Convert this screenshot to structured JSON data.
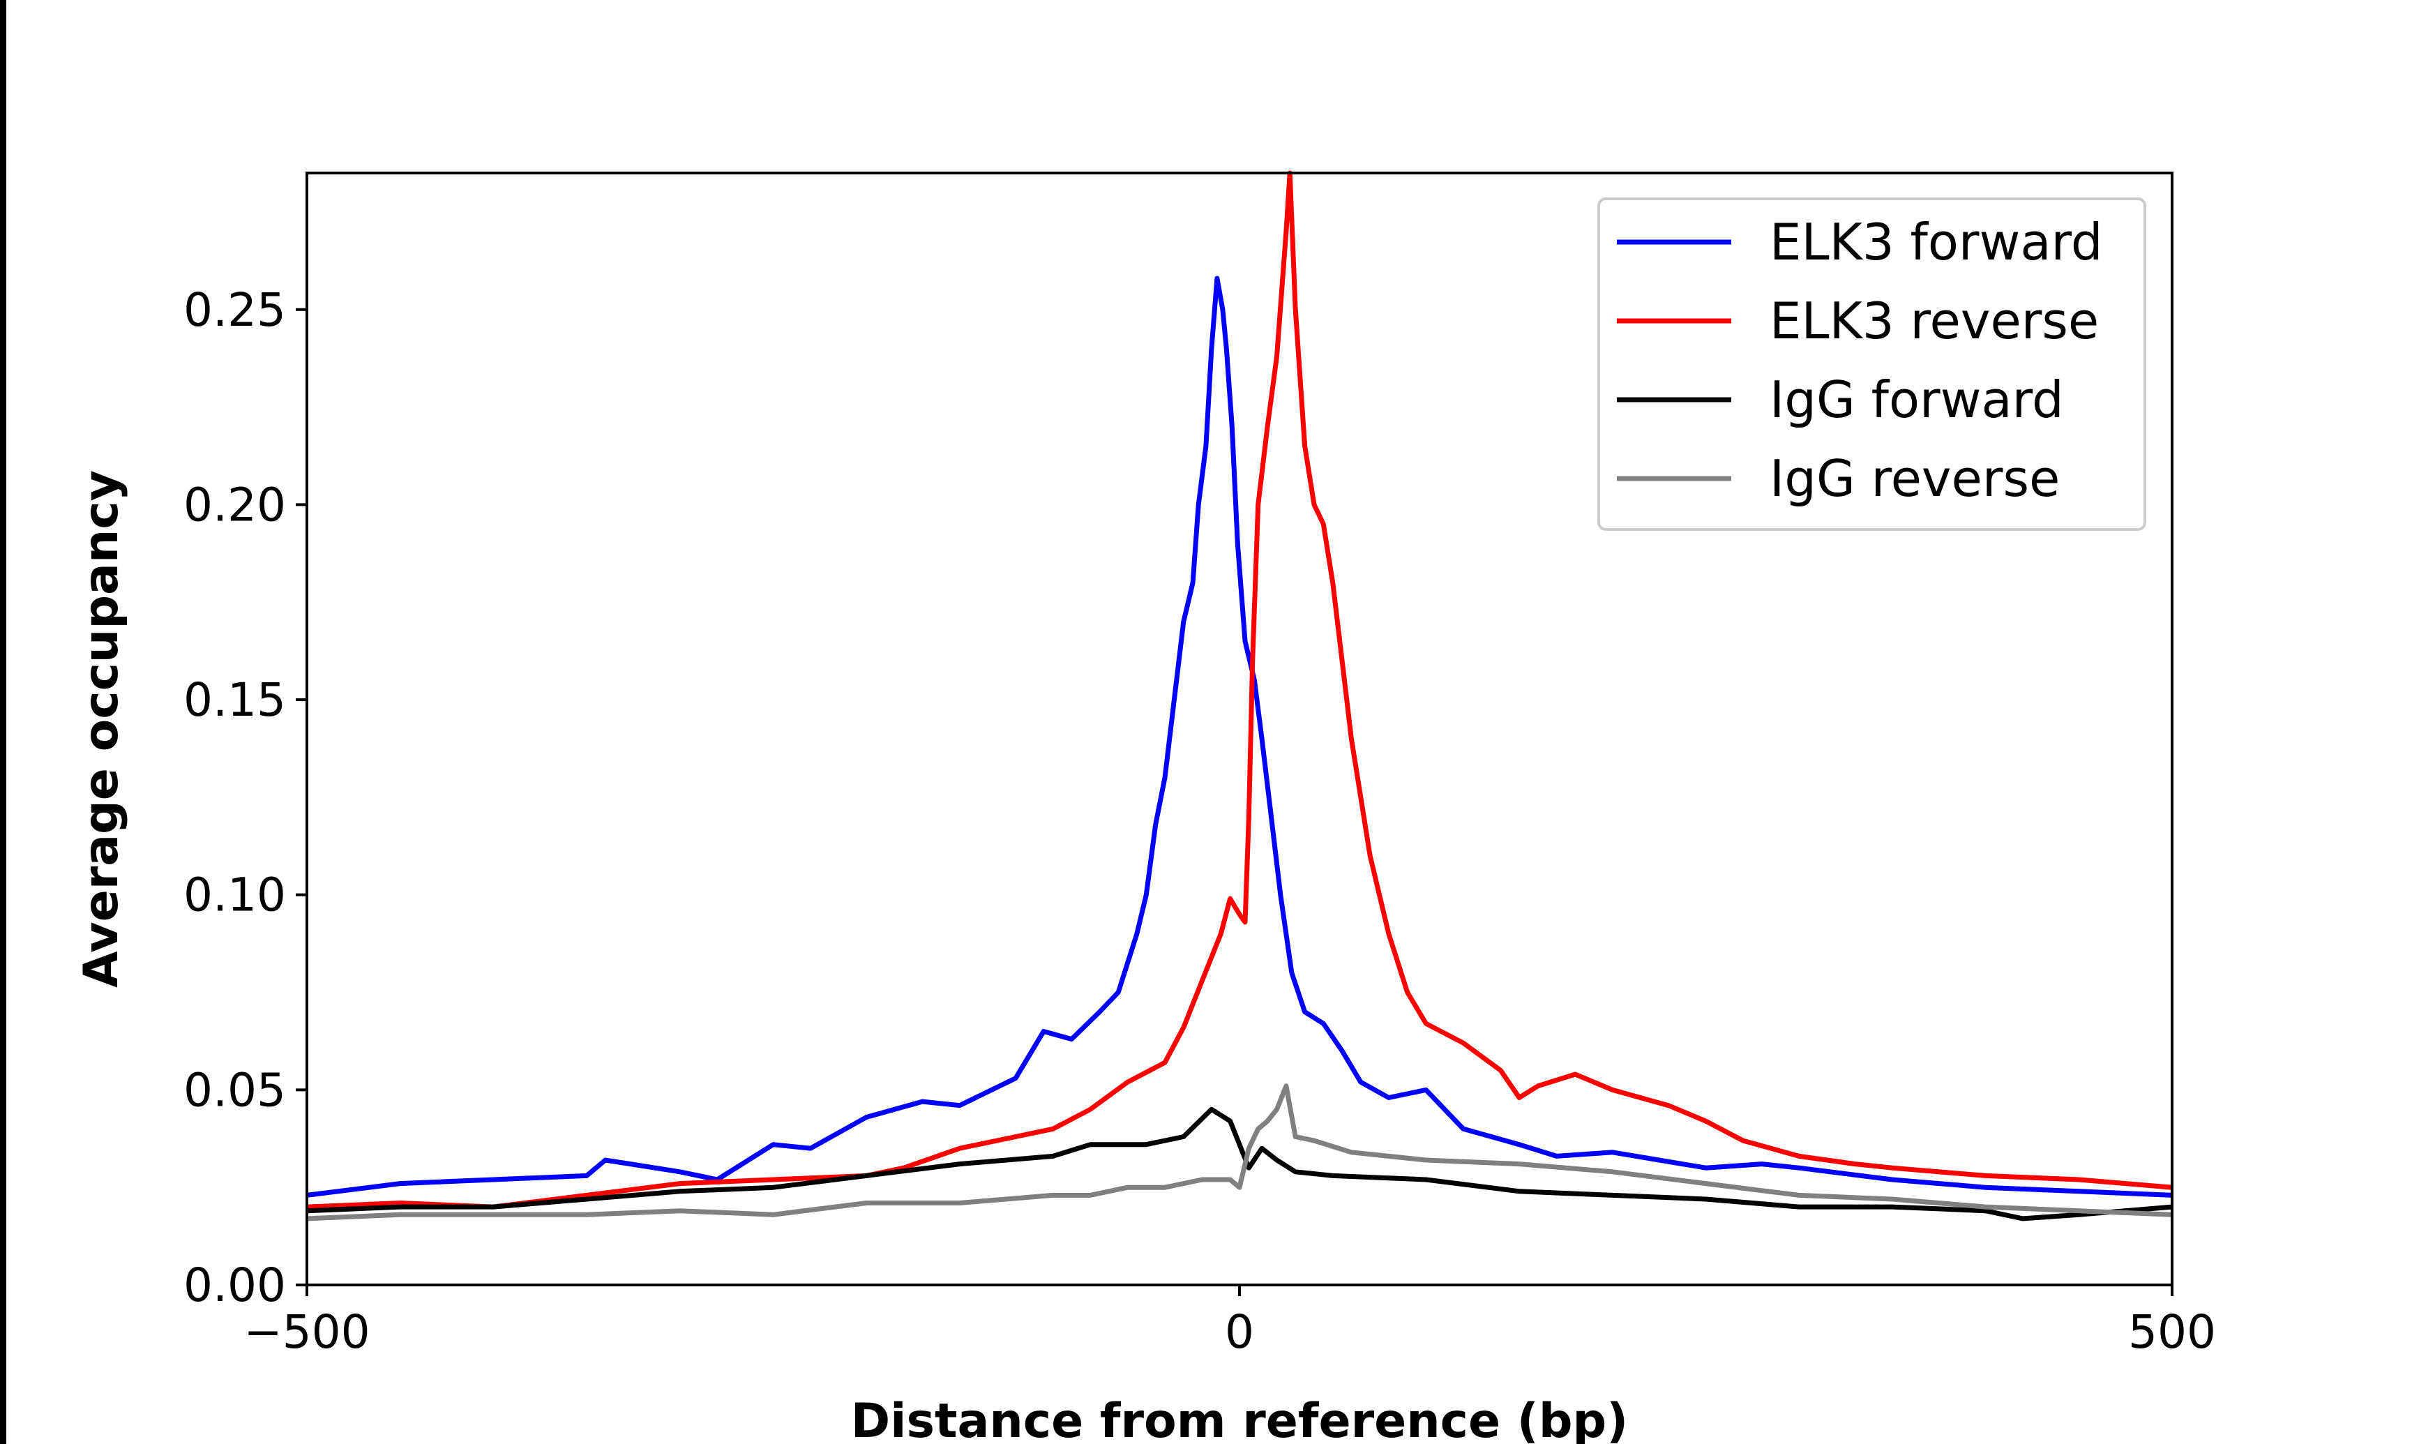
{
  "chart_data": {
    "type": "line",
    "title": "",
    "xlabel": "Distance from reference (bp)",
    "ylabel": "Average occupancy",
    "xlim": [
      -500,
      500
    ],
    "ylim": [
      0,
      0.285
    ],
    "xticks": [
      -500,
      0,
      500
    ],
    "xtick_labels": [
      "−500",
      "0",
      "500"
    ],
    "yticks": [
      0.0,
      0.05,
      0.1,
      0.15,
      0.2,
      0.25
    ],
    "ytick_labels": [
      "0.00",
      "0.05",
      "0.10",
      "0.15",
      "0.20",
      "0.25"
    ],
    "grid": false,
    "legend_position": "top-right",
    "series": [
      {
        "name": "ELK3 forward",
        "color": "#0000ff",
        "x": [
          -500,
          -450,
          -400,
          -350,
          -340,
          -300,
          -280,
          -250,
          -230,
          -200,
          -170,
          -150,
          -120,
          -105,
          -90,
          -75,
          -65,
          -55,
          -50,
          -45,
          -40,
          -35,
          -30,
          -25,
          -22,
          -18,
          -15,
          -12,
          -9,
          -7,
          -4,
          -1,
          3,
          8,
          12,
          17,
          22,
          28,
          35,
          45,
          55,
          65,
          80,
          100,
          120,
          150,
          170,
          200,
          250,
          280,
          300,
          350,
          400,
          450,
          500
        ],
        "y": [
          0.023,
          0.026,
          0.027,
          0.028,
          0.032,
          0.029,
          0.027,
          0.036,
          0.035,
          0.043,
          0.047,
          0.046,
          0.053,
          0.065,
          0.063,
          0.07,
          0.075,
          0.09,
          0.1,
          0.118,
          0.13,
          0.15,
          0.17,
          0.18,
          0.2,
          0.215,
          0.24,
          0.258,
          0.25,
          0.24,
          0.22,
          0.19,
          0.165,
          0.155,
          0.14,
          0.12,
          0.1,
          0.08,
          0.07,
          0.067,
          0.06,
          0.052,
          0.048,
          0.05,
          0.04,
          0.036,
          0.033,
          0.034,
          0.03,
          0.031,
          0.03,
          0.027,
          0.025,
          0.024,
          0.023
        ]
      },
      {
        "name": "ELK3 reverse",
        "color": "#ff0000",
        "x": [
          -500,
          -450,
          -400,
          -350,
          -300,
          -250,
          -200,
          -180,
          -150,
          -120,
          -100,
          -80,
          -60,
          -40,
          -30,
          -20,
          -10,
          -5,
          0,
          3,
          5,
          7,
          10,
          15,
          20,
          25,
          27,
          30,
          35,
          40,
          45,
          50,
          55,
          60,
          70,
          80,
          90,
          100,
          120,
          140,
          150,
          160,
          180,
          200,
          230,
          250,
          270,
          300,
          330,
          350,
          400,
          450,
          500
        ],
        "y": [
          0.02,
          0.021,
          0.02,
          0.023,
          0.026,
          0.027,
          0.028,
          0.03,
          0.035,
          0.038,
          0.04,
          0.045,
          0.052,
          0.057,
          0.066,
          0.078,
          0.09,
          0.099,
          0.095,
          0.093,
          0.12,
          0.16,
          0.2,
          0.22,
          0.238,
          0.27,
          0.285,
          0.25,
          0.215,
          0.2,
          0.195,
          0.18,
          0.16,
          0.14,
          0.11,
          0.09,
          0.075,
          0.067,
          0.062,
          0.055,
          0.048,
          0.051,
          0.054,
          0.05,
          0.046,
          0.042,
          0.037,
          0.033,
          0.031,
          0.03,
          0.028,
          0.027,
          0.025
        ]
      },
      {
        "name": "IgG forward",
        "color": "#000000",
        "x": [
          -500,
          -450,
          -400,
          -350,
          -300,
          -250,
          -200,
          -150,
          -100,
          -80,
          -50,
          -30,
          -15,
          -5,
          0,
          5,
          12,
          20,
          30,
          50,
          100,
          150,
          200,
          250,
          300,
          350,
          400,
          420,
          450,
          500
        ],
        "y": [
          0.019,
          0.02,
          0.02,
          0.022,
          0.024,
          0.025,
          0.028,
          0.031,
          0.033,
          0.036,
          0.036,
          0.038,
          0.045,
          0.042,
          0.036,
          0.03,
          0.035,
          0.032,
          0.029,
          0.028,
          0.027,
          0.024,
          0.023,
          0.022,
          0.02,
          0.02,
          0.019,
          0.017,
          0.018,
          0.02
        ]
      },
      {
        "name": "IgG reverse",
        "color": "#808080",
        "x": [
          -500,
          -450,
          -400,
          -350,
          -300,
          -250,
          -200,
          -150,
          -100,
          -80,
          -60,
          -40,
          -20,
          -5,
          0,
          5,
          10,
          15,
          20,
          25,
          30,
          40,
          60,
          100,
          150,
          200,
          250,
          300,
          350,
          400,
          450,
          500
        ],
        "y": [
          0.017,
          0.018,
          0.018,
          0.018,
          0.019,
          0.018,
          0.021,
          0.021,
          0.023,
          0.023,
          0.025,
          0.025,
          0.027,
          0.027,
          0.025,
          0.035,
          0.04,
          0.042,
          0.045,
          0.051,
          0.038,
          0.037,
          0.034,
          0.032,
          0.031,
          0.029,
          0.026,
          0.023,
          0.022,
          0.02,
          0.019,
          0.018
        ]
      }
    ]
  }
}
